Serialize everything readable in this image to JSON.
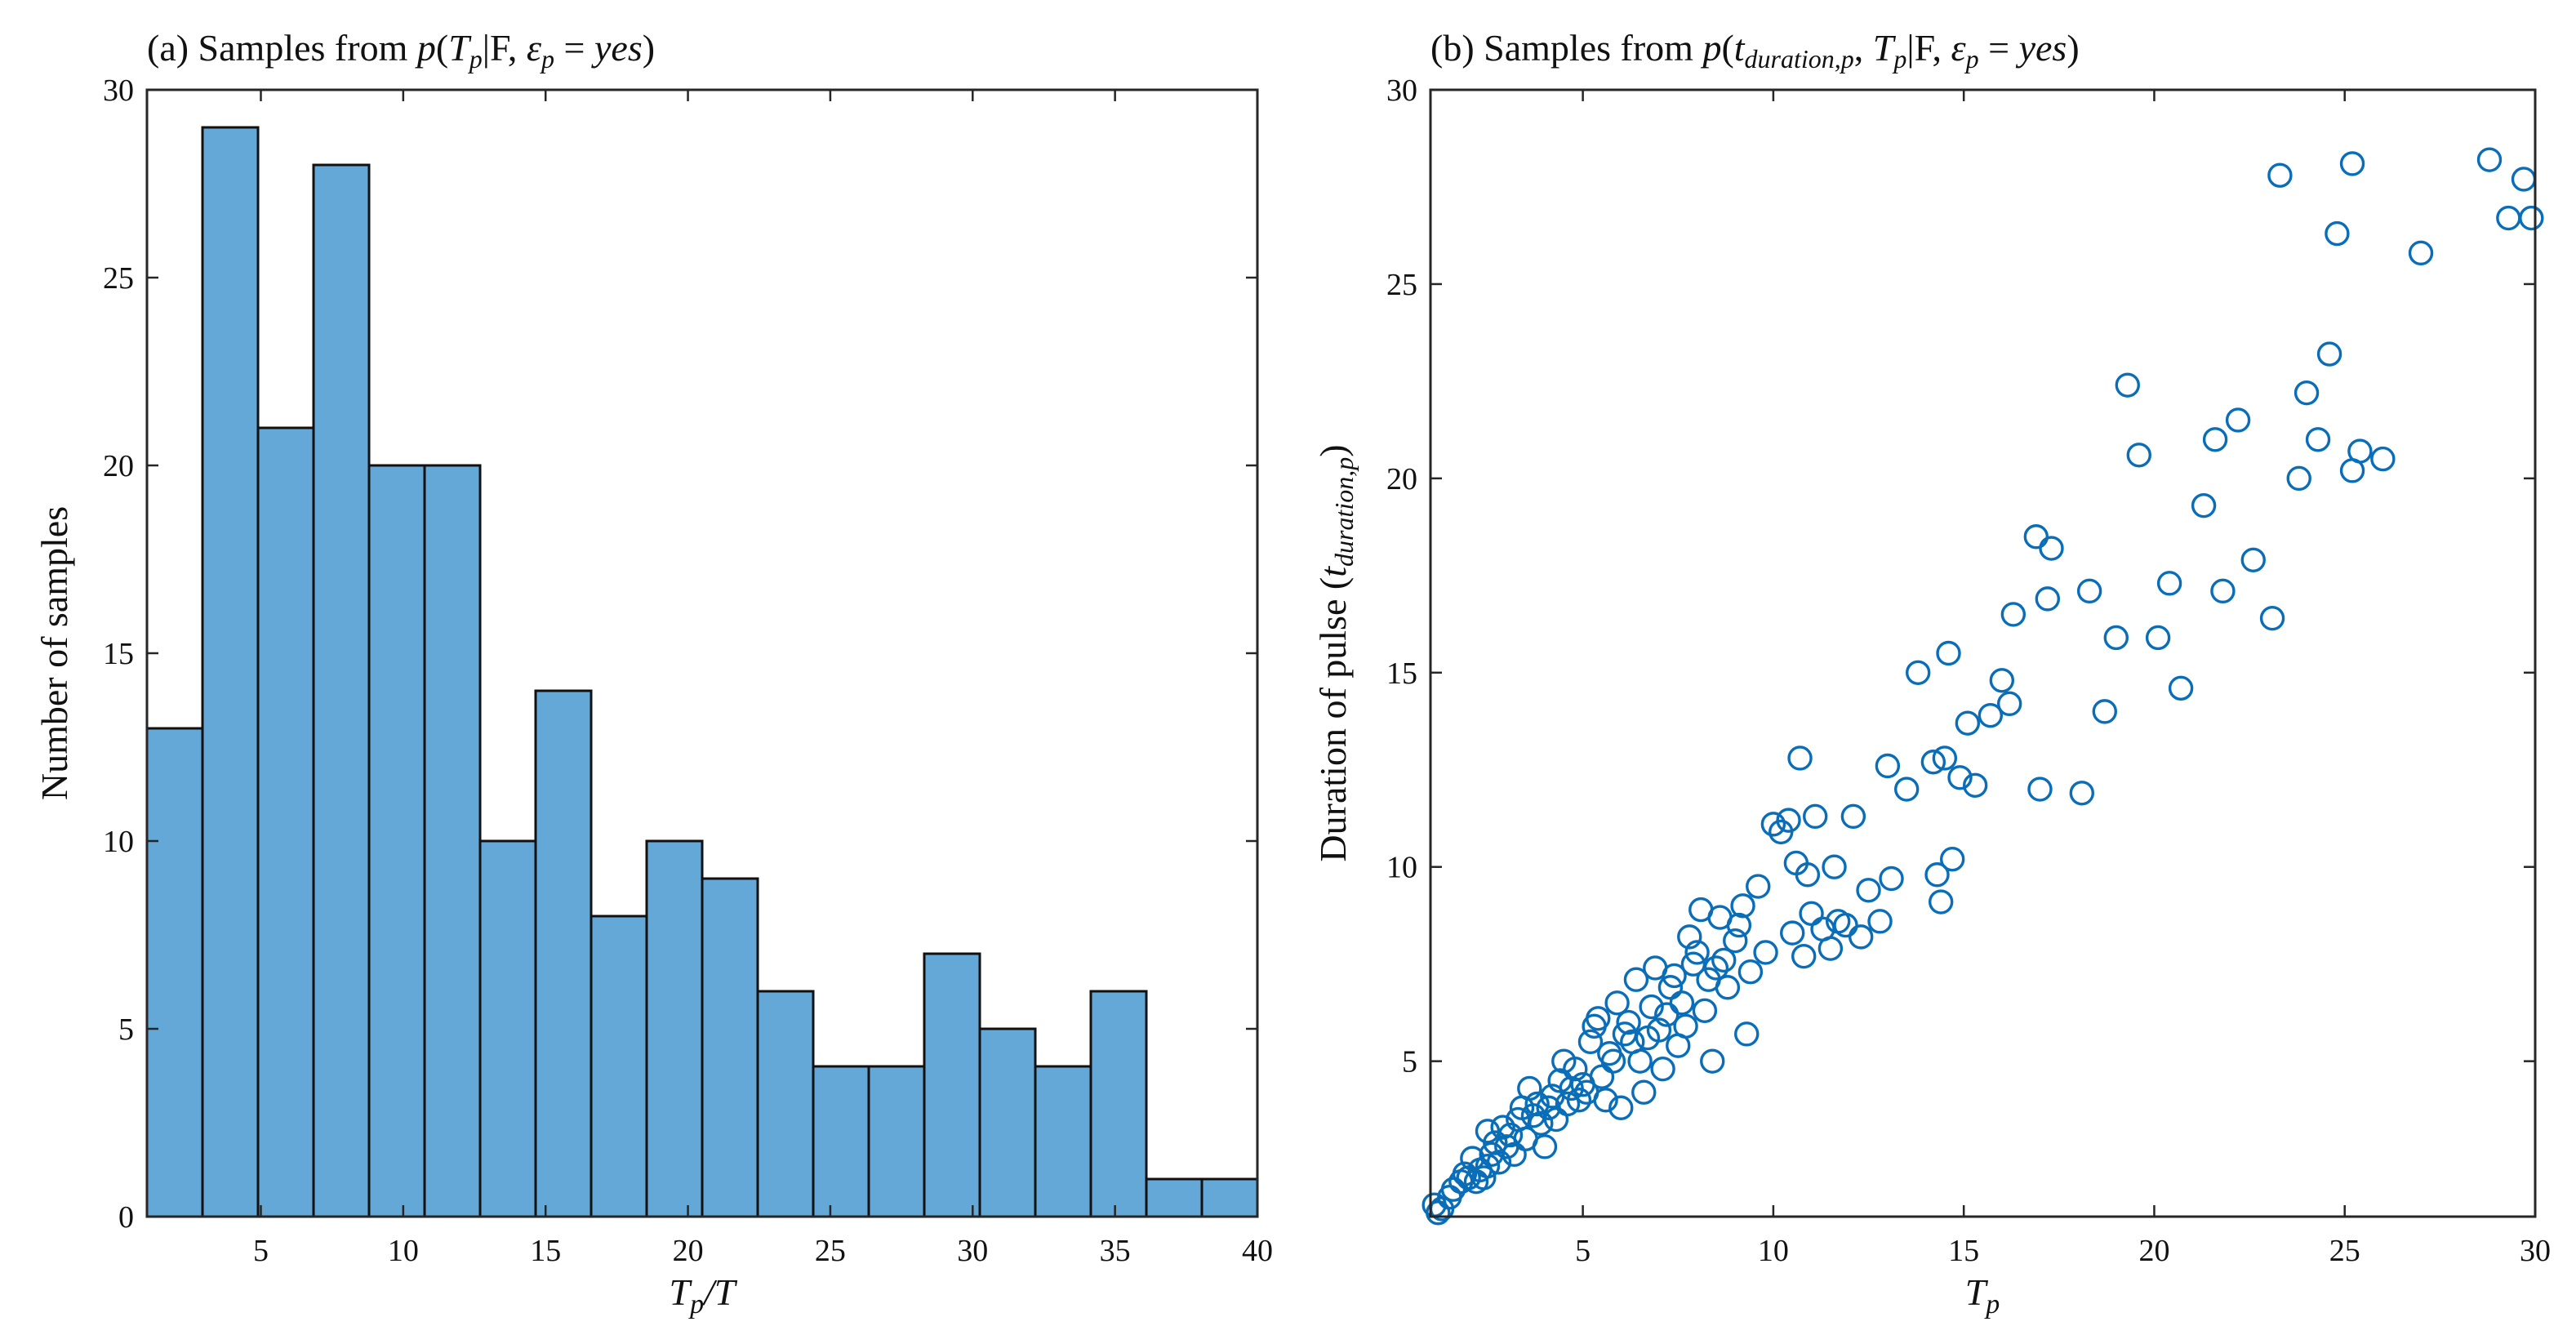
{
  "colors": {
    "bar_fill": "#64A8D7",
    "marker": "#0A6DB8",
    "axis": "#262626"
  },
  "chart_data": [
    {
      "type": "bar",
      "title": "(a) Samples from p(T_p|F, ε_p = yes)",
      "title_parts": {
        "prefix": "(a) Samples from ",
        "p": "p",
        "T": "T",
        "T_sub": "p",
        "given": "|F, ",
        "eps": "ε",
        "eps_sub": "p",
        "eq": " = ",
        "yes": "yes",
        "close": ")"
      },
      "xlabel": "T_p/T",
      "xlabel_parts": {
        "T": "T",
        "sub": "p",
        "rest": "/T"
      },
      "ylabel": "Number of samples",
      "xlim": [
        1,
        40
      ],
      "ylim": [
        0,
        30
      ],
      "xticks": [
        5,
        10,
        15,
        20,
        25,
        30,
        35,
        40
      ],
      "yticks": [
        0,
        5,
        10,
        15,
        20,
        25,
        30
      ],
      "bin_edges": [
        1,
        2.95,
        4.9,
        6.85,
        8.8,
        10.75,
        12.7,
        14.65,
        16.6,
        18.55,
        20.5,
        22.45,
        24.4,
        26.35,
        28.3,
        30.25,
        32.2,
        34.15,
        36.1,
        38.05,
        40
      ],
      "values": [
        13,
        29,
        21,
        28,
        20,
        20,
        10,
        14,
        8,
        10,
        9,
        6,
        4,
        4,
        7,
        5,
        4,
        6,
        1,
        1
      ]
    },
    {
      "type": "scatter",
      "title": "(b) Samples from p(t_duration,p, T_p|F, ε_p = yes)",
      "title_parts": {
        "prefix": "(b) Samples from ",
        "p": "p",
        "t": "t",
        "t_sub": "duration,p",
        "comma": ", ",
        "T": "T",
        "T_sub": "p",
        "given": "|F, ",
        "eps": "ε",
        "eps_sub": "p",
        "eq": " = ",
        "yes": "yes",
        "close": ")"
      },
      "xlabel": "T_p",
      "xlabel_parts": {
        "T": "T",
        "sub": "p"
      },
      "ylabel": "Duration of pulse (t_duration,p)",
      "ylabel_parts": {
        "prefix": "Duration of pulse (",
        "t": "t",
        "sub": "duration,p",
        "close": ")"
      },
      "xlim": [
        1,
        30
      ],
      "ylim": [
        1,
        30
      ],
      "xticks": [
        5,
        10,
        15,
        20,
        25,
        30
      ],
      "yticks": [
        5,
        10,
        15,
        20,
        25,
        30
      ],
      "points": [
        [
          1.1,
          1.3
        ],
        [
          1.2,
          1.1
        ],
        [
          1.3,
          1.2
        ],
        [
          1.5,
          1.5
        ],
        [
          1.6,
          1.7
        ],
        [
          1.8,
          1.9
        ],
        [
          1.9,
          2.1
        ],
        [
          2.0,
          2.0
        ],
        [
          2.1,
          2.5
        ],
        [
          2.2,
          1.9
        ],
        [
          2.3,
          2.2
        ],
        [
          2.4,
          2.0
        ],
        [
          2.5,
          2.3
        ],
        [
          2.5,
          3.2
        ],
        [
          2.6,
          2.6
        ],
        [
          2.7,
          2.9
        ],
        [
          2.8,
          2.4
        ],
        [
          2.9,
          3.3
        ],
        [
          3.0,
          2.8
        ],
        [
          3.1,
          3.1
        ],
        [
          3.2,
          2.6
        ],
        [
          3.3,
          3.5
        ],
        [
          3.4,
          3.8
        ],
        [
          3.5,
          3.0
        ],
        [
          3.6,
          4.3
        ],
        [
          3.7,
          3.6
        ],
        [
          3.8,
          3.9
        ],
        [
          3.9,
          3.4
        ],
        [
          4.0,
          2.8
        ],
        [
          4.1,
          3.8
        ],
        [
          4.2,
          4.1
        ],
        [
          4.3,
          3.5
        ],
        [
          4.4,
          4.5
        ],
        [
          4.5,
          5.0
        ],
        [
          4.6,
          3.9
        ],
        [
          4.7,
          4.3
        ],
        [
          4.8,
          4.8
        ],
        [
          4.9,
          4.0
        ],
        [
          5.0,
          4.4
        ],
        [
          5.1,
          4.2
        ],
        [
          5.2,
          5.5
        ],
        [
          5.3,
          5.9
        ],
        [
          5.4,
          6.1
        ],
        [
          5.5,
          4.6
        ],
        [
          5.6,
          4.0
        ],
        [
          5.7,
          5.2
        ],
        [
          5.8,
          5.0
        ],
        [
          5.9,
          6.5
        ],
        [
          6.0,
          3.8
        ],
        [
          6.1,
          5.7
        ],
        [
          6.2,
          6.0
        ],
        [
          6.3,
          5.5
        ],
        [
          6.4,
          7.1
        ],
        [
          6.5,
          5.0
        ],
        [
          6.6,
          4.2
        ],
        [
          6.7,
          5.6
        ],
        [
          6.8,
          6.4
        ],
        [
          6.9,
          7.4
        ],
        [
          7.0,
          5.8
        ],
        [
          7.1,
          4.8
        ],
        [
          7.2,
          6.2
        ],
        [
          7.3,
          6.9
        ],
        [
          7.4,
          7.2
        ],
        [
          7.5,
          5.4
        ],
        [
          7.6,
          6.5
        ],
        [
          7.7,
          5.9
        ],
        [
          7.8,
          8.2
        ],
        [
          7.9,
          7.5
        ],
        [
          8.0,
          7.8
        ],
        [
          8.1,
          8.9
        ],
        [
          8.2,
          6.3
        ],
        [
          8.3,
          7.1
        ],
        [
          8.4,
          5.0
        ],
        [
          8.5,
          7.4
        ],
        [
          8.6,
          8.7
        ],
        [
          8.7,
          7.6
        ],
        [
          8.8,
          6.9
        ],
        [
          9.0,
          8.1
        ],
        [
          9.1,
          8.5
        ],
        [
          9.2,
          9.0
        ],
        [
          9.3,
          5.7
        ],
        [
          9.4,
          7.3
        ],
        [
          9.6,
          9.5
        ],
        [
          9.8,
          7.8
        ],
        [
          10.0,
          11.1
        ],
        [
          10.2,
          10.9
        ],
        [
          10.4,
          11.2
        ],
        [
          10.5,
          8.3
        ],
        [
          10.6,
          10.1
        ],
        [
          10.7,
          12.8
        ],
        [
          10.8,
          7.7
        ],
        [
          10.9,
          9.8
        ],
        [
          11.0,
          8.8
        ],
        [
          11.1,
          11.3
        ],
        [
          11.3,
          8.4
        ],
        [
          11.5,
          7.9
        ],
        [
          11.6,
          10.0
        ],
        [
          11.7,
          8.6
        ],
        [
          11.9,
          8.5
        ],
        [
          12.1,
          11.3
        ],
        [
          12.3,
          8.2
        ],
        [
          12.5,
          9.4
        ],
        [
          12.8,
          8.6
        ],
        [
          13.0,
          12.6
        ],
        [
          13.1,
          9.7
        ],
        [
          13.5,
          12.0
        ],
        [
          13.8,
          15.0
        ],
        [
          14.2,
          12.7
        ],
        [
          14.3,
          9.8
        ],
        [
          14.4,
          9.1
        ],
        [
          14.5,
          12.8
        ],
        [
          14.6,
          15.5
        ],
        [
          14.7,
          10.2
        ],
        [
          14.9,
          12.3
        ],
        [
          15.1,
          13.7
        ],
        [
          15.3,
          12.1
        ],
        [
          15.7,
          13.9
        ],
        [
          16.0,
          14.8
        ],
        [
          16.2,
          14.2
        ],
        [
          16.3,
          16.5
        ],
        [
          16.9,
          18.5
        ],
        [
          17.0,
          12.0
        ],
        [
          17.2,
          16.9
        ],
        [
          17.3,
          18.2
        ],
        [
          18.1,
          11.9
        ],
        [
          18.3,
          17.1
        ],
        [
          18.7,
          14.0
        ],
        [
          19.0,
          15.9
        ],
        [
          19.3,
          22.4
        ],
        [
          19.6,
          20.6
        ],
        [
          20.1,
          15.9
        ],
        [
          20.4,
          17.3
        ],
        [
          20.7,
          14.6
        ],
        [
          21.3,
          19.3
        ],
        [
          21.6,
          21.0
        ],
        [
          21.8,
          17.1
        ],
        [
          22.2,
          21.5
        ],
        [
          22.6,
          17.9
        ],
        [
          23.1,
          16.4
        ],
        [
          23.3,
          27.8
        ],
        [
          23.8,
          20.0
        ],
        [
          24.0,
          22.2
        ],
        [
          24.3,
          21.0
        ],
        [
          24.6,
          23.2
        ],
        [
          24.8,
          26.3
        ],
        [
          25.2,
          28.1
        ],
        [
          25.2,
          20.2
        ],
        [
          25.4,
          20.7
        ],
        [
          26.0,
          20.5
        ],
        [
          27.0,
          25.8
        ],
        [
          28.8,
          28.2
        ],
        [
          29.3,
          26.7
        ],
        [
          29.7,
          27.7
        ],
        [
          29.9,
          26.7
        ]
      ]
    }
  ]
}
